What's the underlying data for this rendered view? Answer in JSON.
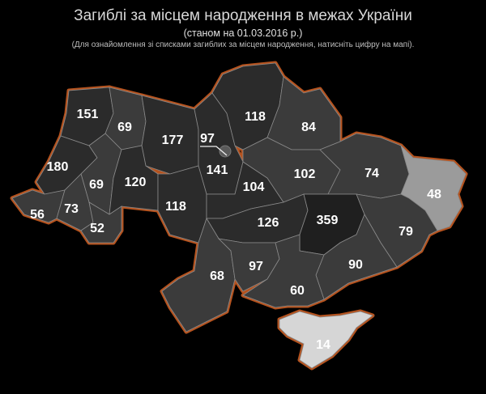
{
  "header": {
    "title": "Загиблі за місцем народження в межах України",
    "subtitle": "(станом на 01.03.2016 р.)",
    "note": "(Для ознайомлення зі списками загиблих за місцем народження, натисніть цифру на мапі)."
  },
  "colors": {
    "background": "#000000",
    "region_default": "#3b3b3b",
    "region_dark": "#2b2b2b",
    "region_darkest": "#1f1f1f",
    "region_light": "#9b9b9b",
    "region_lightest": "#d6d6d6",
    "border_outline": "#b5531f",
    "region_border": "#8a8a8a"
  },
  "regions": [
    {
      "id": "volyn",
      "value": "151",
      "shade": "dark"
    },
    {
      "id": "rivne",
      "value": "69",
      "shade": "default"
    },
    {
      "id": "zhytomyr",
      "value": "177",
      "shade": "dark"
    },
    {
      "id": "kyiv-city",
      "value": "97",
      "shade": "default"
    },
    {
      "id": "kyiv",
      "value": "141",
      "shade": "dark"
    },
    {
      "id": "chernihiv",
      "value": "118",
      "shade": "dark"
    },
    {
      "id": "sumy",
      "value": "84",
      "shade": "default"
    },
    {
      "id": "lviv",
      "value": "180",
      "shade": "dark"
    },
    {
      "id": "ternopil",
      "value": "69",
      "shade": "default"
    },
    {
      "id": "khmelnytskyi",
      "value": "120",
      "shade": "dark"
    },
    {
      "id": "vinnytsia",
      "value": "118",
      "shade": "dark"
    },
    {
      "id": "cherkasy",
      "value": "104",
      "shade": "dark"
    },
    {
      "id": "poltava",
      "value": "102",
      "shade": "default"
    },
    {
      "id": "kharkiv",
      "value": "74",
      "shade": "default"
    },
    {
      "id": "luhansk",
      "value": "48",
      "shade": "light"
    },
    {
      "id": "zakarpattia",
      "value": "56",
      "shade": "default"
    },
    {
      "id": "ivano-frankivsk",
      "value": "73",
      "shade": "default"
    },
    {
      "id": "chernivtsi",
      "value": "52",
      "shade": "default"
    },
    {
      "id": "kirovohrad",
      "value": "126",
      "shade": "dark"
    },
    {
      "id": "dnipropetrovsk",
      "value": "359",
      "shade": "darkest"
    },
    {
      "id": "donetsk",
      "value": "79",
      "shade": "default"
    },
    {
      "id": "zaporizhzhia",
      "value": "90",
      "shade": "default"
    },
    {
      "id": "odesa",
      "value": "68",
      "shade": "default"
    },
    {
      "id": "mykolaiv",
      "value": "97",
      "shade": "default"
    },
    {
      "id": "kherson",
      "value": "60",
      "shade": "default"
    },
    {
      "id": "crimea",
      "value": "14",
      "shade": "lightest"
    }
  ]
}
